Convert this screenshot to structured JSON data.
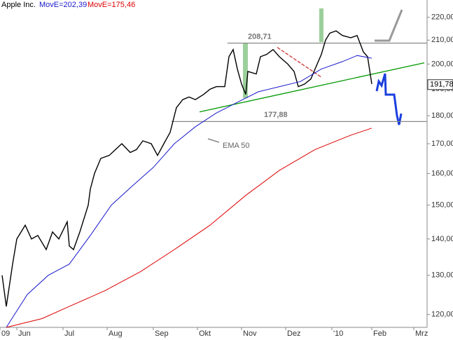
{
  "chart_data": {
    "type": "line",
    "title": "Apple Inc.",
    "log": true,
    "xlim": [
      0,
      203
    ],
    "ylim": [
      116.9,
      227.9
    ],
    "yticks": [
      {
        "value": 120,
        "label": "120,00"
      },
      {
        "value": 130,
        "label": "130,00"
      },
      {
        "value": 140,
        "label": "140,00"
      },
      {
        "value": 150,
        "label": "150,00"
      },
      {
        "value": 160,
        "label": "160,00"
      },
      {
        "value": 170,
        "label": "170,00"
      },
      {
        "value": 180,
        "label": "180,00"
      },
      {
        "value": 190,
        "label": "190,00"
      },
      {
        "value": 200,
        "label": "200,00"
      },
      {
        "value": 210,
        "label": "210,00"
      },
      {
        "value": 220,
        "label": "220,00"
      }
    ],
    "xticks": [
      {
        "value": 0,
        "label": "09"
      },
      {
        "value": 8,
        "label": "Jun"
      },
      {
        "value": 30,
        "label": "Jul"
      },
      {
        "value": 51,
        "label": "Aug"
      },
      {
        "value": 73,
        "label": "Sep"
      },
      {
        "value": 94,
        "label": "Okt"
      },
      {
        "value": 115,
        "label": "Nov"
      },
      {
        "value": 136,
        "label": "Dez"
      },
      {
        "value": 158,
        "label": "'10"
      },
      {
        "value": 177,
        "label": "Feb"
      },
      {
        "value": 197,
        "label": "Mrz"
      }
    ],
    "series": [
      {
        "name": "Apple Inc.",
        "color": "#000000",
        "x": [
          1,
          3,
          6,
          8,
          12,
          15,
          18,
          22,
          25,
          28,
          32,
          33,
          35,
          38,
          42,
          43,
          45,
          48,
          52,
          55,
          58,
          62,
          65,
          68,
          72,
          75,
          78,
          81,
          84,
          87,
          90,
          93,
          97,
          100,
          103,
          107,
          109,
          111,
          113,
          115,
          117,
          118,
          122,
          124,
          127,
          130,
          133,
          137,
          140,
          142,
          145,
          148,
          150,
          153,
          155,
          157,
          160,
          163,
          167,
          170,
          173,
          175,
          177
        ],
        "values": [
          130,
          122,
          133,
          140,
          144,
          140,
          141,
          137,
          142,
          140,
          145,
          138,
          137,
          142,
          150,
          155,
          160,
          165,
          166,
          168,
          170,
          167,
          168,
          171,
          170,
          166,
          170,
          174,
          183,
          186,
          187,
          186,
          188,
          190,
          191,
          191,
          203,
          206,
          198,
          192,
          188,
          197,
          196,
          203,
          204,
          206,
          203,
          200,
          197,
          191,
          192,
          194,
          198,
          204,
          210,
          213,
          214,
          212,
          211,
          212,
          205,
          203,
          192
        ]
      },
      {
        "name": "MovE=202,39",
        "color": "#1a1acc",
        "x": [
          3,
          13,
          23,
          33,
          43,
          53,
          63,
          73,
          83,
          93,
          103,
          113,
          123,
          133,
          143,
          153,
          163,
          170,
          177
        ],
        "values": [
          116.9,
          125,
          130,
          133,
          141,
          150,
          156,
          162,
          170,
          176,
          181,
          185,
          189,
          191,
          193,
          198,
          201,
          203.5,
          202.4
        ]
      },
      {
        "name": "MovE=175,46",
        "color": "#dd0000",
        "x": [
          3,
          20,
          33,
          50,
          67,
          83,
          100,
          117,
          133,
          150,
          167,
          177
        ],
        "values": [
          116.9,
          119,
          122,
          126,
          131,
          137,
          144,
          153,
          161,
          168,
          173,
          175.5
        ]
      }
    ],
    "levels": [
      {
        "value": 208.71,
        "label": "208,71"
      },
      {
        "value": 177.88,
        "label": "177,88"
      }
    ],
    "trendlines": [
      {
        "color": "#009900",
        "x": [
          95,
          202
        ],
        "values": [
          181.4,
          200.5
        ]
      },
      {
        "color": "#cc3333",
        "x": [
          132,
          153
        ],
        "values": [
          206.9,
          194.7
        ]
      }
    ],
    "annotation": "EMA 50",
    "last_price": {
      "value": 191.78,
      "label": "191,78"
    }
  }
}
